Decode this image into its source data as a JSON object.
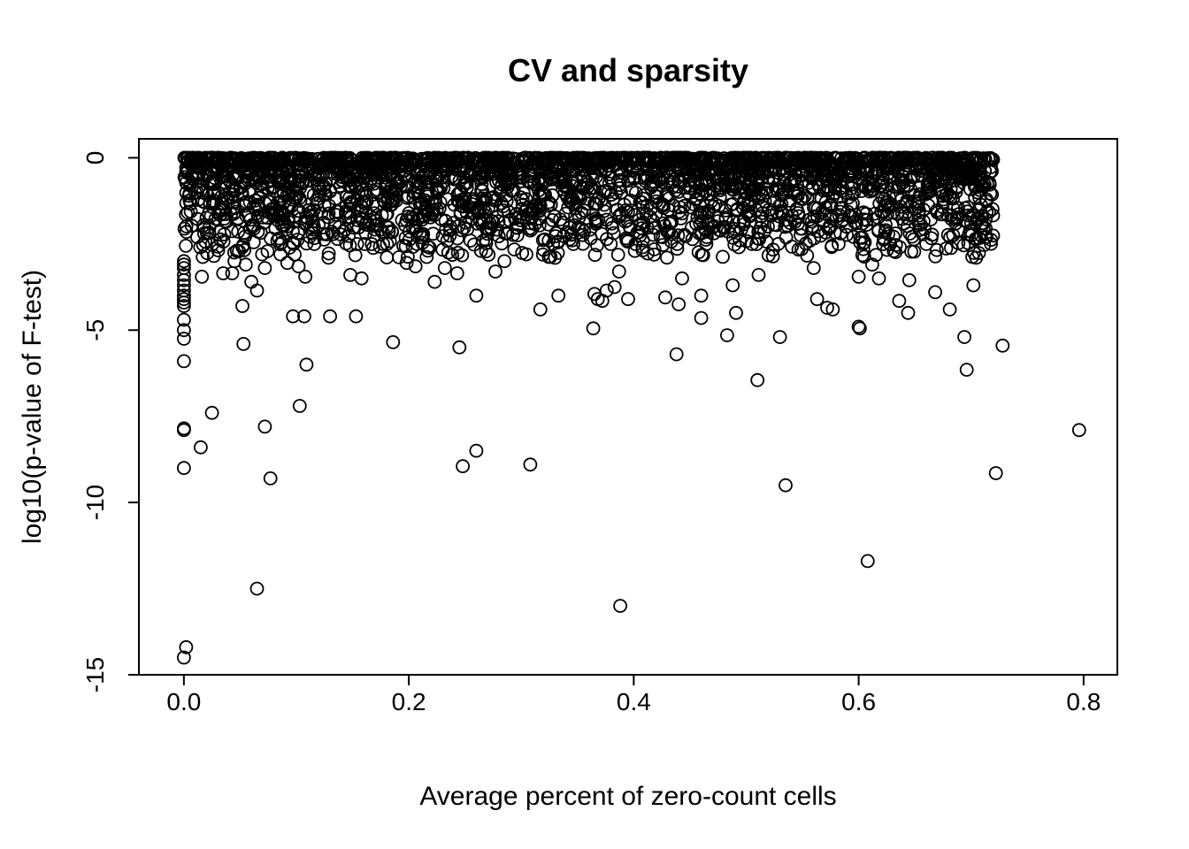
{
  "chart_data": {
    "type": "scatter",
    "title": "CV and sparsity",
    "xlabel": "Average percent of zero-count cells",
    "ylabel": "log10(p-value of F-test)",
    "xlim": [
      -0.04,
      0.83
    ],
    "ylim": [
      -15,
      0.55
    ],
    "xticks": [
      0.0,
      0.2,
      0.4,
      0.6,
      0.8
    ],
    "xtick_labels": [
      "0.0",
      "0.2",
      "0.4",
      "0.6",
      "0.8"
    ],
    "yticks": [
      0,
      -5,
      -10,
      -15
    ],
    "ytick_labels": [
      "0",
      "-5",
      "-10",
      "-15"
    ],
    "grid": false,
    "legend": "none",
    "marker": "open-circle",
    "color": "#000000",
    "dense_band": {
      "x_range": [
        0.0,
        0.72
      ],
      "y_range": [
        -2.2,
        0
      ],
      "description": "thousands of overlapping points"
    },
    "points": [
      [
        0.0,
        -14.5
      ],
      [
        0.002,
        -14.2
      ],
      [
        0.065,
        -12.5
      ],
      [
        0.388,
        -13.0
      ],
      [
        0.608,
        -11.7
      ],
      [
        0.535,
        -9.5
      ],
      [
        0.722,
        -9.15
      ],
      [
        0.077,
        -9.3
      ],
      [
        0.0,
        -9.0
      ],
      [
        0.248,
        -8.95
      ],
      [
        0.308,
        -8.9
      ],
      [
        0.26,
        -8.5
      ],
      [
        0.015,
        -8.4
      ],
      [
        0.072,
        -7.8
      ],
      [
        0.0,
        -7.85
      ],
      [
        0.0,
        -7.9
      ],
      [
        0.796,
        -7.9
      ],
      [
        0.025,
        -7.4
      ],
      [
        0.103,
        -7.2
      ],
      [
        0.51,
        -6.45
      ],
      [
        0.109,
        -6.0
      ],
      [
        0.696,
        -6.15
      ],
      [
        0.0,
        -5.9
      ],
      [
        0.438,
        -5.7
      ],
      [
        0.245,
        -5.5
      ],
      [
        0.728,
        -5.45
      ],
      [
        0.053,
        -5.4
      ],
      [
        0.186,
        -5.35
      ],
      [
        0.53,
        -5.2
      ],
      [
        0.483,
        -5.15
      ],
      [
        0.694,
        -5.2
      ],
      [
        0.0,
        -5.25
      ],
      [
        0.0,
        -5.0
      ],
      [
        0.364,
        -4.95
      ],
      [
        0.6,
        -4.9
      ],
      [
        0.601,
        -4.95
      ],
      [
        0.0,
        -4.7
      ],
      [
        0.46,
        -4.65
      ],
      [
        0.491,
        -4.5
      ],
      [
        0.644,
        -4.5
      ],
      [
        0.097,
        -4.6
      ],
      [
        0.107,
        -4.6
      ],
      [
        0.13,
        -4.6
      ],
      [
        0.153,
        -4.6
      ],
      [
        0.317,
        -4.4
      ],
      [
        0.681,
        -4.4
      ],
      [
        0.572,
        -4.35
      ],
      [
        0.577,
        -4.4
      ],
      [
        0.052,
        -4.3
      ],
      [
        0.44,
        -4.25
      ],
      [
        0.0,
        -4.3
      ],
      [
        0.0,
        -4.2
      ],
      [
        0.0,
        -4.1
      ],
      [
        0.563,
        -4.1
      ],
      [
        0.636,
        -4.15
      ],
      [
        0.372,
        -4.15
      ],
      [
        0.368,
        -4.1
      ],
      [
        0.395,
        -4.1
      ],
      [
        0.428,
        -4.05
      ],
      [
        0.46,
        -4.0
      ],
      [
        0.26,
        -4.0
      ],
      [
        0.333,
        -4.0
      ],
      [
        0.365,
        -3.95
      ],
      [
        0.0,
        -4.0
      ],
      [
        0.0,
        -3.85
      ],
      [
        0.065,
        -3.85
      ],
      [
        0.376,
        -3.85
      ],
      [
        0.383,
        -3.75
      ],
      [
        0.702,
        -3.7
      ],
      [
        0.488,
        -3.7
      ],
      [
        0.668,
        -3.9
      ],
      [
        0.0,
        -3.7
      ],
      [
        0.0,
        -3.55
      ],
      [
        0.06,
        -3.6
      ],
      [
        0.223,
        -3.6
      ],
      [
        0.645,
        -3.55
      ],
      [
        0.618,
        -3.5
      ],
      [
        0.6,
        -3.45
      ],
      [
        0.443,
        -3.5
      ],
      [
        0.511,
        -3.4
      ],
      [
        0.0,
        -3.4
      ],
      [
        0.016,
        -3.45
      ],
      [
        0.108,
        -3.45
      ],
      [
        0.148,
        -3.4
      ],
      [
        0.158,
        -3.5
      ],
      [
        0.043,
        -3.35
      ],
      [
        0.035,
        -3.35
      ],
      [
        0.277,
        -3.3
      ],
      [
        0.387,
        -3.3
      ],
      [
        0.243,
        -3.35
      ],
      [
        0.0,
        -3.2
      ],
      [
        0.0,
        -3.1
      ],
      [
        0.072,
        -3.2
      ],
      [
        0.232,
        -3.2
      ],
      [
        0.56,
        -3.2
      ],
      [
        0.612,
        -3.1
      ],
      [
        0.102,
        -3.15
      ],
      [
        0.206,
        -3.15
      ],
      [
        0.0,
        -3.0
      ],
      [
        0.045,
        -3.0
      ],
      [
        0.055,
        -3.1
      ],
      [
        0.092,
        -3.05
      ],
      [
        0.198,
        -3.05
      ],
      [
        0.285,
        -3.0
      ],
      [
        0.33,
        -2.9
      ]
    ]
  }
}
